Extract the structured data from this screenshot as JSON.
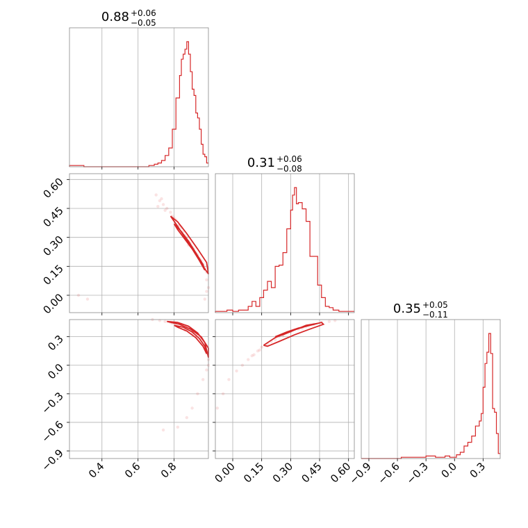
{
  "chart_data": {
    "type": "corner",
    "color": "#d62728",
    "grid": true,
    "params": [
      {
        "median": "0.88",
        "plus": "+0.06",
        "minus": "−0.05",
        "range": [
          0.22,
          0.99
        ],
        "ticks": [
          0.4,
          0.6,
          0.8
        ],
        "tick_labels": [
          "0.4",
          "0.6",
          "0.8"
        ]
      },
      {
        "median": "0.31",
        "plus": "+0.06",
        "minus": "−0.08",
        "range": [
          -0.09,
          0.63
        ],
        "ticks": [
          0.0,
          0.15,
          0.3,
          0.45,
          0.6
        ],
        "tick_labels": [
          "0.00",
          "0.15",
          "0.30",
          "0.45",
          "0.60"
        ]
      },
      {
        "median": "0.35",
        "plus": "+0.05",
        "minus": "−0.11",
        "range": [
          -0.98,
          0.48
        ],
        "ticks": [
          -0.9,
          -0.6,
          -0.3,
          0.0,
          0.3
        ],
        "tick_labels": [
          "−0.9",
          "−0.6",
          "−0.3",
          "0.0",
          "0.3"
        ]
      }
    ],
    "histograms": [
      {
        "param": 0,
        "density": [
          [
            0.22,
            0.01
          ],
          [
            0.26,
            0.01
          ],
          [
            0.3,
            0.0
          ],
          [
            0.62,
            0.0
          ],
          [
            0.66,
            0.01
          ],
          [
            0.69,
            0.02
          ],
          [
            0.71,
            0.03
          ],
          [
            0.73,
            0.05
          ],
          [
            0.75,
            0.09
          ],
          [
            0.77,
            0.15
          ],
          [
            0.79,
            0.3
          ],
          [
            0.81,
            0.55
          ],
          [
            0.83,
            0.73
          ],
          [
            0.84,
            0.86
          ],
          [
            0.85,
            0.9
          ],
          [
            0.86,
            0.94
          ],
          [
            0.87,
            1.0
          ],
          [
            0.88,
            0.9
          ],
          [
            0.89,
            0.76
          ],
          [
            0.9,
            0.62
          ],
          [
            0.91,
            0.57
          ],
          [
            0.92,
            0.43
          ],
          [
            0.93,
            0.39
          ],
          [
            0.94,
            0.3
          ],
          [
            0.95,
            0.18
          ],
          [
            0.96,
            0.1
          ],
          [
            0.97,
            0.08
          ],
          [
            0.98,
            0.03
          ],
          [
            0.99,
            0.03
          ]
        ]
      },
      {
        "param": 1,
        "density": [
          [
            -0.09,
            0.01
          ],
          [
            -0.06,
            0.01
          ],
          [
            -0.03,
            0.02
          ],
          [
            0.0,
            0.01
          ],
          [
            0.03,
            0.02
          ],
          [
            0.06,
            0.02
          ],
          [
            0.08,
            0.05
          ],
          [
            0.1,
            0.09
          ],
          [
            0.12,
            0.05
          ],
          [
            0.14,
            0.12
          ],
          [
            0.16,
            0.18
          ],
          [
            0.18,
            0.25
          ],
          [
            0.2,
            0.2
          ],
          [
            0.22,
            0.37
          ],
          [
            0.24,
            0.38
          ],
          [
            0.26,
            0.48
          ],
          [
            0.28,
            0.67
          ],
          [
            0.3,
            0.82
          ],
          [
            0.31,
            0.94
          ],
          [
            0.32,
            1.0
          ],
          [
            0.33,
            0.87
          ],
          [
            0.34,
            0.88
          ],
          [
            0.36,
            0.83
          ],
          [
            0.38,
            0.73
          ],
          [
            0.4,
            0.45
          ],
          [
            0.42,
            0.45
          ],
          [
            0.44,
            0.22
          ],
          [
            0.46,
            0.12
          ],
          [
            0.48,
            0.05
          ],
          [
            0.5,
            0.04
          ],
          [
            0.52,
            0.02
          ],
          [
            0.55,
            0.01
          ],
          [
            0.6,
            0.01
          ],
          [
            0.63,
            0.01
          ]
        ]
      },
      {
        "param": 2,
        "density": [
          [
            -0.98,
            0.0
          ],
          [
            -0.6,
            0.0
          ],
          [
            -0.56,
            0.01
          ],
          [
            -0.4,
            0.01
          ],
          [
            -0.3,
            0.02
          ],
          [
            -0.2,
            0.01
          ],
          [
            -0.1,
            0.02
          ],
          [
            -0.05,
            0.01
          ],
          [
            0.02,
            0.03
          ],
          [
            0.06,
            0.05
          ],
          [
            0.1,
            0.1
          ],
          [
            0.14,
            0.13
          ],
          [
            0.18,
            0.18
          ],
          [
            0.22,
            0.26
          ],
          [
            0.26,
            0.3
          ],
          [
            0.28,
            0.36
          ],
          [
            0.3,
            0.57
          ],
          [
            0.32,
            0.76
          ],
          [
            0.34,
            0.85
          ],
          [
            0.36,
            1.0
          ],
          [
            0.38,
            0.84
          ],
          [
            0.4,
            0.4
          ],
          [
            0.42,
            0.37
          ],
          [
            0.44,
            0.2
          ],
          [
            0.46,
            0.04
          ],
          [
            0.48,
            0.04
          ]
        ]
      }
    ],
    "scatter_2d": [
      {
        "x_param": 0,
        "y_param": 1,
        "contours": [
          [
            [
              0.8,
              0.37
            ],
            [
              0.82,
              0.34
            ],
            [
              0.86,
              0.29
            ],
            [
              0.9,
              0.24
            ],
            [
              0.94,
              0.18
            ],
            [
              0.97,
              0.13
            ],
            [
              0.96,
              0.16
            ],
            [
              0.92,
              0.22
            ],
            [
              0.88,
              0.28
            ],
            [
              0.84,
              0.33
            ],
            [
              0.8,
              0.37
            ]
          ],
          [
            [
              0.78,
              0.41
            ],
            [
              0.81,
              0.37
            ],
            [
              0.86,
              0.3
            ],
            [
              0.91,
              0.23
            ],
            [
              0.96,
              0.15
            ],
            [
              0.99,
              0.11
            ],
            [
              0.98,
              0.17
            ],
            [
              0.93,
              0.24
            ],
            [
              0.87,
              0.32
            ],
            [
              0.82,
              0.38
            ],
            [
              0.78,
              0.41
            ]
          ]
        ],
        "points": [
          [
            0.7,
            0.52
          ],
          [
            0.72,
            0.49
          ],
          [
            0.74,
            0.47
          ],
          [
            0.76,
            0.45
          ],
          [
            0.78,
            0.43
          ],
          [
            0.79,
            0.41
          ],
          [
            0.8,
            0.4
          ],
          [
            0.81,
            0.39
          ],
          [
            0.83,
            0.36
          ],
          [
            0.84,
            0.35
          ],
          [
            0.85,
            0.33
          ],
          [
            0.86,
            0.31
          ],
          [
            0.87,
            0.3
          ],
          [
            0.88,
            0.28
          ],
          [
            0.89,
            0.27
          ],
          [
            0.9,
            0.25
          ],
          [
            0.91,
            0.24
          ],
          [
            0.92,
            0.22
          ],
          [
            0.93,
            0.21
          ],
          [
            0.94,
            0.19
          ],
          [
            0.95,
            0.18
          ],
          [
            0.96,
            0.16
          ],
          [
            0.97,
            0.14
          ],
          [
            0.98,
            0.12
          ],
          [
            0.98,
            0.08
          ],
          [
            0.99,
            0.04
          ],
          [
            0.98,
            0.02
          ],
          [
            0.97,
            -0.02
          ],
          [
            0.75,
            0.44
          ],
          [
            0.73,
            0.5
          ],
          [
            0.71,
            0.46
          ],
          [
            0.27,
            0.0
          ],
          [
            0.32,
            -0.02
          ],
          [
            0.82,
            0.36
          ],
          [
            0.88,
            0.26
          ]
        ]
      },
      {
        "x_param": 0,
        "y_param": 2,
        "contours": [
          [
            [
              0.8,
              0.42
            ],
            [
              0.85,
              0.4
            ],
            [
              0.9,
              0.35
            ],
            [
              0.94,
              0.28
            ],
            [
              0.97,
              0.2
            ],
            [
              0.98,
              0.12
            ],
            [
              0.96,
              0.2
            ],
            [
              0.92,
              0.29
            ],
            [
              0.87,
              0.36
            ],
            [
              0.82,
              0.4
            ],
            [
              0.8,
              0.42
            ]
          ],
          [
            [
              0.76,
              0.46
            ],
            [
              0.82,
              0.45
            ],
            [
              0.88,
              0.41
            ],
            [
              0.93,
              0.34
            ],
            [
              0.97,
              0.24
            ],
            [
              0.99,
              0.08
            ],
            [
              0.99,
              0.18
            ],
            [
              0.95,
              0.3
            ],
            [
              0.89,
              0.38
            ],
            [
              0.83,
              0.43
            ],
            [
              0.76,
              0.46
            ]
          ]
        ],
        "points": [
          [
            0.72,
            0.47
          ],
          [
            0.75,
            0.46
          ],
          [
            0.78,
            0.45
          ],
          [
            0.81,
            0.44
          ],
          [
            0.84,
            0.43
          ],
          [
            0.87,
            0.41
          ],
          [
            0.89,
            0.39
          ],
          [
            0.91,
            0.36
          ],
          [
            0.93,
            0.33
          ],
          [
            0.95,
            0.28
          ],
          [
            0.96,
            0.24
          ],
          [
            0.97,
            0.19
          ],
          [
            0.98,
            0.14
          ],
          [
            0.99,
            0.06
          ],
          [
            0.99,
            0.0
          ],
          [
            0.98,
            -0.05
          ],
          [
            0.96,
            -0.15
          ],
          [
            0.93,
            -0.3
          ],
          [
            0.9,
            -0.45
          ],
          [
            0.87,
            -0.55
          ],
          [
            0.82,
            -0.65
          ],
          [
            0.74,
            -0.68
          ],
          [
            0.86,
            0.37
          ],
          [
            0.9,
            0.33
          ],
          [
            0.79,
            0.44
          ],
          [
            0.68,
            0.48
          ]
        ]
      },
      {
        "x_param": 1,
        "y_param": 2,
        "contours": [
          [
            [
              0.22,
              0.3
            ],
            [
              0.28,
              0.35
            ],
            [
              0.34,
              0.39
            ],
            [
              0.4,
              0.42
            ],
            [
              0.44,
              0.44
            ],
            [
              0.38,
              0.42
            ],
            [
              0.32,
              0.37
            ],
            [
              0.26,
              0.32
            ],
            [
              0.22,
              0.3
            ]
          ],
          [
            [
              0.16,
              0.21
            ],
            [
              0.22,
              0.29
            ],
            [
              0.3,
              0.36
            ],
            [
              0.38,
              0.41
            ],
            [
              0.46,
              0.45
            ],
            [
              0.47,
              0.43
            ],
            [
              0.4,
              0.38
            ],
            [
              0.32,
              0.32
            ],
            [
              0.24,
              0.25
            ],
            [
              0.18,
              0.2
            ],
            [
              0.16,
              0.21
            ]
          ]
        ],
        "points": [
          [
            0.5,
            0.46
          ],
          [
            0.53,
            0.47
          ],
          [
            0.46,
            0.45
          ],
          [
            0.42,
            0.43
          ],
          [
            0.38,
            0.41
          ],
          [
            0.34,
            0.38
          ],
          [
            0.3,
            0.35
          ],
          [
            0.26,
            0.31
          ],
          [
            0.22,
            0.27
          ],
          [
            0.18,
            0.22
          ],
          [
            0.15,
            0.19
          ],
          [
            0.13,
            0.15
          ],
          [
            0.11,
            0.11
          ],
          [
            0.08,
            0.06
          ],
          [
            0.05,
            0.0
          ],
          [
            0.02,
            -0.06
          ],
          [
            -0.02,
            -0.15
          ],
          [
            -0.05,
            -0.3
          ],
          [
            -0.08,
            -0.45
          ],
          [
            0.1,
            0.1
          ],
          [
            0.14,
            0.16
          ],
          [
            0.2,
            0.25
          ],
          [
            0.24,
            0.3
          ],
          [
            0.36,
            0.39
          ]
        ]
      }
    ]
  }
}
